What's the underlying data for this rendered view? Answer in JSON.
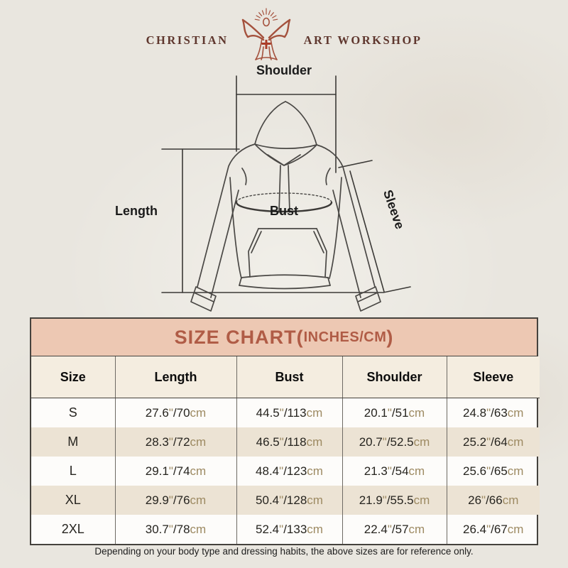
{
  "logo": {
    "left_text": "CHRISTIAN",
    "right_text": "ART WORKSHOP",
    "figure_icon": "jesus-open-arms-rays-icon",
    "accent_color": "#a4513d",
    "text_color": "#5f372e"
  },
  "diagram": {
    "labels": {
      "shoulder": "Shoulder",
      "length": "Length",
      "bust": "Bust",
      "sleeve": "Sleeve"
    }
  },
  "size_chart": {
    "title_main": "SIZE CHART(",
    "title_inner": "INCHES/CM",
    "title_close": ")",
    "header_bg_color": "#edc8b3",
    "title_text_color": "#b05c46",
    "alt_row_color": "#ece3d4",
    "unit_text_color": "#9d8a62",
    "inch_mark": "\"",
    "separator": "/",
    "cm_suffix": "cm",
    "columns": [
      "Size",
      "Length",
      "Bust",
      "Shoulder",
      "Sleeve"
    ],
    "rows": [
      {
        "size": "S",
        "measurements": [
          {
            "in": "27.6",
            "cm": "70"
          },
          {
            "in": "44.5",
            "cm": "113"
          },
          {
            "in": "20.1",
            "cm": "51"
          },
          {
            "in": "24.8",
            "cm": "63"
          }
        ]
      },
      {
        "size": "M",
        "measurements": [
          {
            "in": "28.3",
            "cm": "72"
          },
          {
            "in": "46.5",
            "cm": "118"
          },
          {
            "in": "20.7",
            "cm": "52.5"
          },
          {
            "in": "25.2",
            "cm": "64"
          }
        ]
      },
      {
        "size": "L",
        "measurements": [
          {
            "in": "29.1",
            "cm": "74"
          },
          {
            "in": "48.4",
            "cm": "123"
          },
          {
            "in": "21.3",
            "cm": "54"
          },
          {
            "in": "25.6",
            "cm": "65"
          }
        ]
      },
      {
        "size": "XL",
        "measurements": [
          {
            "in": "29.9",
            "cm": "76"
          },
          {
            "in": "50.4",
            "cm": "128"
          },
          {
            "in": "21.9",
            "cm": "55.5"
          },
          {
            "in": "26",
            "cm": "66"
          }
        ]
      },
      {
        "size": "2XL",
        "measurements": [
          {
            "in": "30.7",
            "cm": "78"
          },
          {
            "in": "52.4",
            "cm": "133"
          },
          {
            "in": "22.4",
            "cm": "57"
          },
          {
            "in": "26.4",
            "cm": "67"
          }
        ]
      }
    ]
  },
  "chart_data": {
    "type": "table",
    "title": "SIZE CHART(INCHES/CM)",
    "columns": [
      "Size",
      "Length",
      "Bust",
      "Shoulder",
      "Sleeve"
    ],
    "rows": [
      [
        "S",
        "27.6\"/70cm",
        "44.5\"/113cm",
        "20.1\"/51cm",
        "24.8\"/63cm"
      ],
      [
        "M",
        "28.3\"/72cm",
        "46.5\"/118cm",
        "20.7\"/52.5cm",
        "25.2\"/64cm"
      ],
      [
        "L",
        "29.1\"/74cm",
        "48.4\"/123cm",
        "21.3\"/54cm",
        "25.6\"/65cm"
      ],
      [
        "XL",
        "29.9\"/76cm",
        "50.4\"/128cm",
        "21.9\"/55.5cm",
        "26\"/66cm"
      ],
      [
        "2XL",
        "30.7\"/78cm",
        "52.4\"/133cm",
        "22.4\"/57cm",
        "26.4\"/67cm"
      ]
    ]
  },
  "footer": {
    "note": "Depending on your body type and dressing habits, the above sizes are for reference only."
  }
}
